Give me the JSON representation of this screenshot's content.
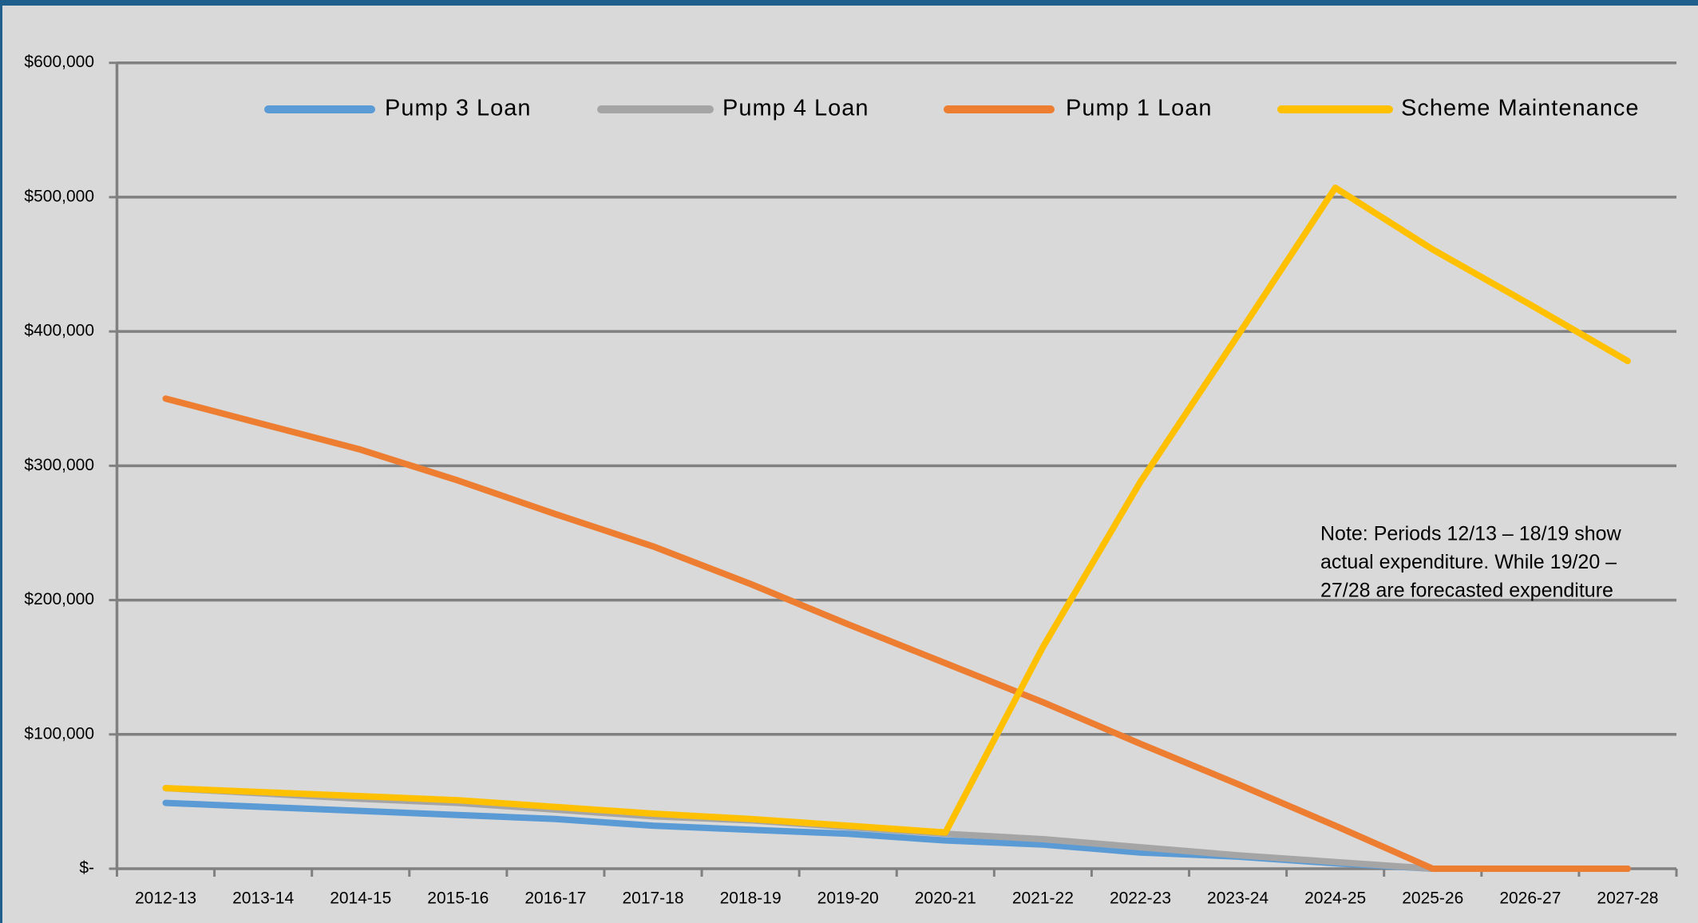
{
  "chart_data": {
    "type": "line",
    "categories": [
      "2012-13",
      "2013-14",
      "2014-15",
      "2015-16",
      "2016-17",
      "2017-18",
      "2018-19",
      "2019-20",
      "2020-21",
      "2021-22",
      "2022-23",
      "2023-24",
      "2024-25",
      "2025-26",
      "2026-27",
      "2027-28"
    ],
    "series": [
      {
        "name": "Pump 3 Loan",
        "color": "#5b9bd5",
        "values": [
          49000,
          46000,
          43000,
          40000,
          37000,
          32000,
          29000,
          26000,
          21000,
          18000,
          12000,
          9000,
          4000,
          0,
          0,
          0
        ]
      },
      {
        "name": "Pump 4 Loan",
        "color": "#a5a5a5",
        "values": [
          60000,
          56000,
          52000,
          49000,
          44000,
          39000,
          36000,
          31000,
          26000,
          22000,
          16000,
          10000,
          5000,
          0,
          0,
          0
        ]
      },
      {
        "name": "Pump 1 Loan",
        "color": "#ed7d31",
        "values": [
          350000,
          331000,
          312000,
          289000,
          264000,
          240000,
          212000,
          182000,
          153000,
          124000,
          93000,
          63000,
          32000,
          0,
          0,
          0
        ]
      },
      {
        "name": "Scheme Maintenance",
        "color": "#ffc000",
        "values": [
          60000,
          57000,
          54000,
          51000,
          46000,
          41000,
          37000,
          32000,
          27000,
          165000,
          288000,
          397000,
          507000,
          461000,
          420000,
          378000
        ]
      }
    ],
    "ylim": [
      0,
      600000
    ],
    "yticks": [
      {
        "value": 0,
        "label": "$-"
      },
      {
        "value": 100000,
        "label": "$100,000"
      },
      {
        "value": 200000,
        "label": "$200,000"
      },
      {
        "value": 300000,
        "label": "$300,000"
      },
      {
        "value": 400000,
        "label": "$400,000"
      },
      {
        "value": 500000,
        "label": "$500,000"
      },
      {
        "value": 600000,
        "label": "$600,000"
      }
    ],
    "grid": true,
    "legend": "top",
    "annotation": [
      "Note: Periods 12/13 – 18/19 show",
      "actual expenditure. While 19/20 –",
      "27/28 are forecasted  expenditure"
    ]
  }
}
